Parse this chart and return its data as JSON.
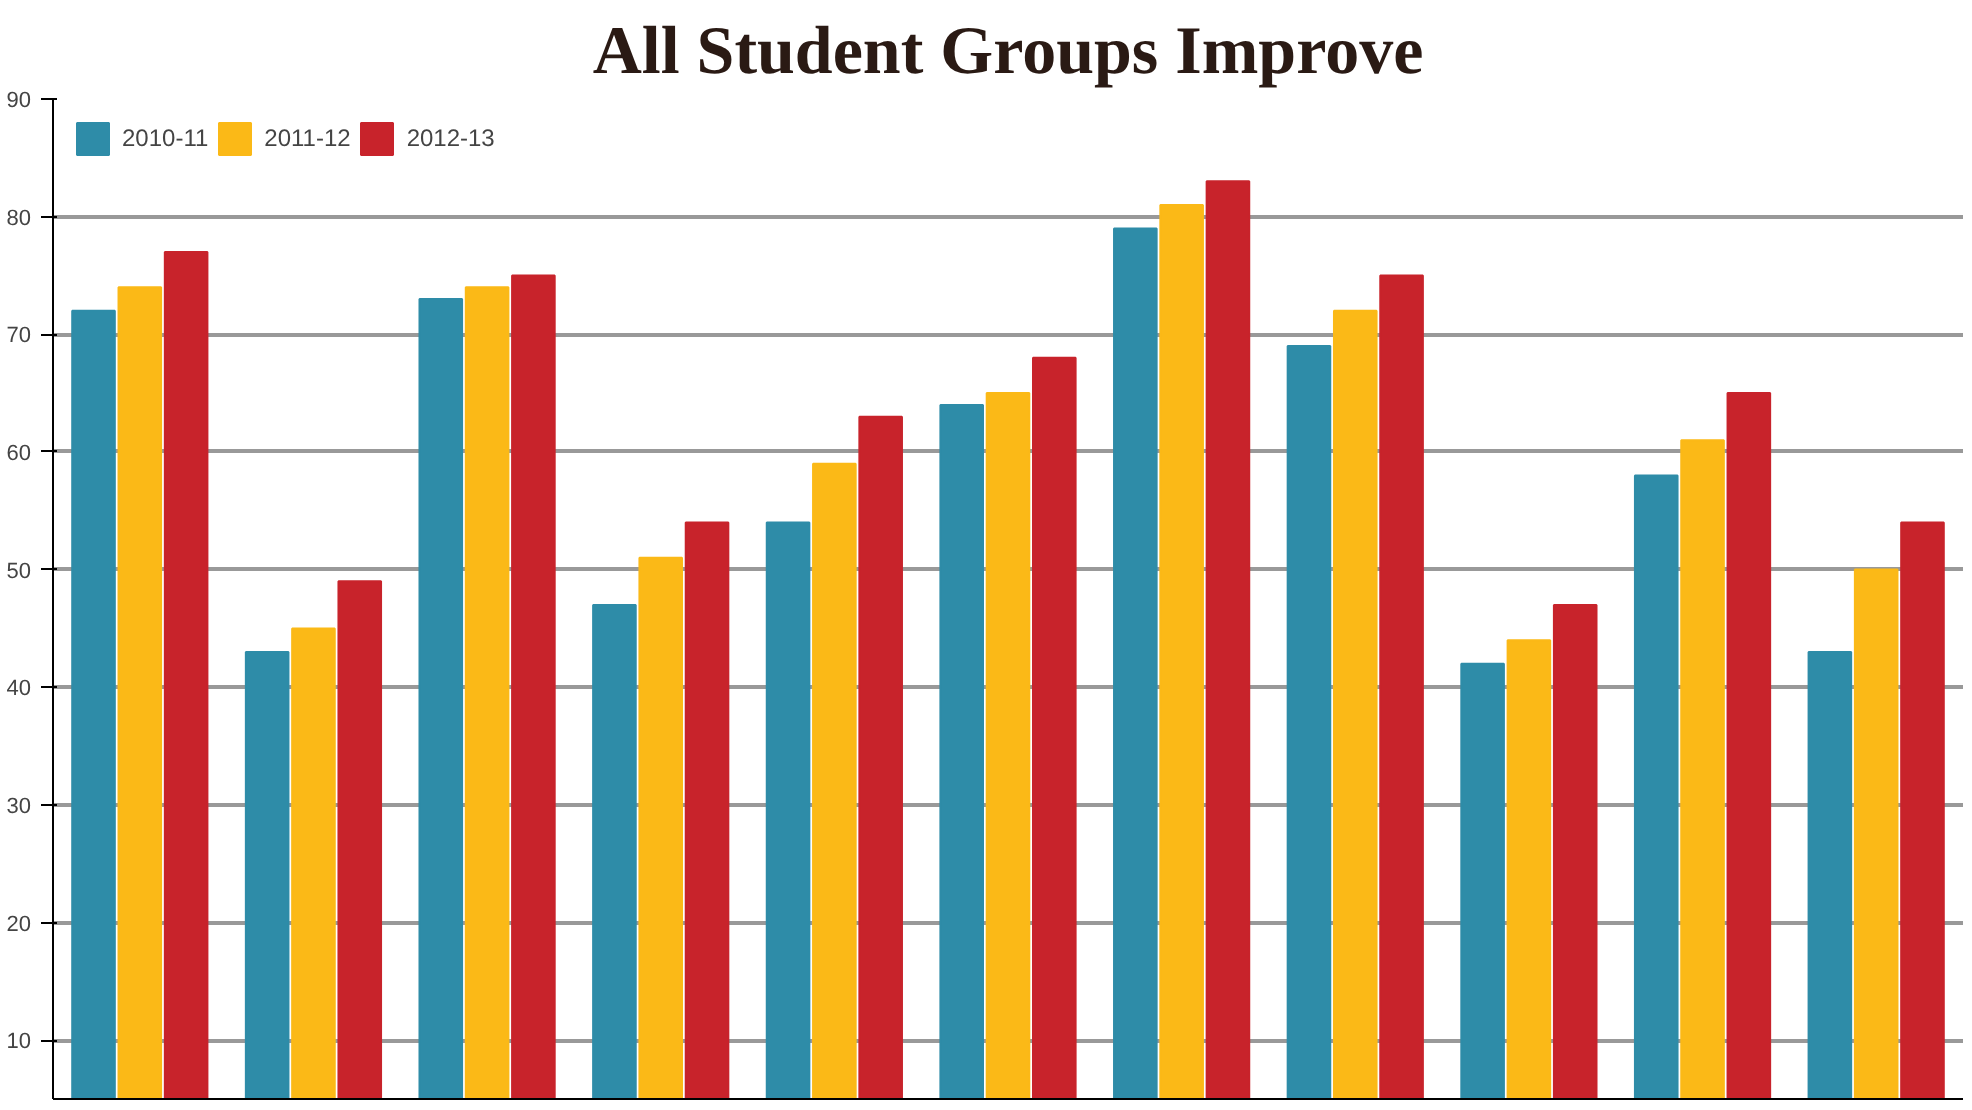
{
  "chart_data": {
    "type": "bar",
    "title": "All Student Groups Improve",
    "categories": [
      null,
      null,
      null,
      null,
      null,
      null,
      null,
      null,
      null,
      null,
      null
    ],
    "series": [
      {
        "name": "2010-11",
        "color": "#2e8ca8",
        "values": [
          72,
          43,
          73,
          47,
          54,
          64,
          79,
          69,
          42,
          58,
          43
        ]
      },
      {
        "name": "2011-12",
        "color": "#fbb917",
        "values": [
          74,
          45,
          74,
          51,
          59,
          65,
          81,
          72,
          44,
          61,
          50
        ]
      },
      {
        "name": "2012-13",
        "color": "#c8232b",
        "values": [
          77,
          49,
          75,
          54,
          63,
          68,
          83,
          75,
          47,
          65,
          54
        ]
      }
    ],
    "ylim": [
      5,
      90
    ],
    "yticks": [
      10,
      20,
      30,
      40,
      50,
      60,
      70,
      80,
      90
    ],
    "grid": "y",
    "legend": "top left"
  }
}
